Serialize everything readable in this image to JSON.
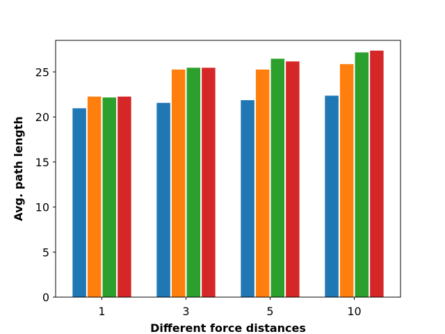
{
  "chart_data": {
    "type": "bar",
    "title": "",
    "xlabel": "Different force distances",
    "ylabel": "Avg. path length",
    "categories": [
      "1",
      "3",
      "5",
      "10"
    ],
    "ylim": [
      0,
      28.5
    ],
    "yticks": [
      0,
      5,
      10,
      15,
      20,
      25
    ],
    "grid": false,
    "legend": "none",
    "series": [
      {
        "color": "#1f77b4",
        "values": [
          21.0,
          21.6,
          21.9,
          22.4
        ]
      },
      {
        "color": "#ff7f0e",
        "values": [
          22.3,
          25.3,
          25.3,
          25.9
        ]
      },
      {
        "color": "#2ca02c",
        "values": [
          22.2,
          25.5,
          26.5,
          27.2
        ]
      },
      {
        "color": "#d62728",
        "values": [
          22.3,
          25.5,
          26.2,
          27.4
        ]
      }
    ]
  }
}
